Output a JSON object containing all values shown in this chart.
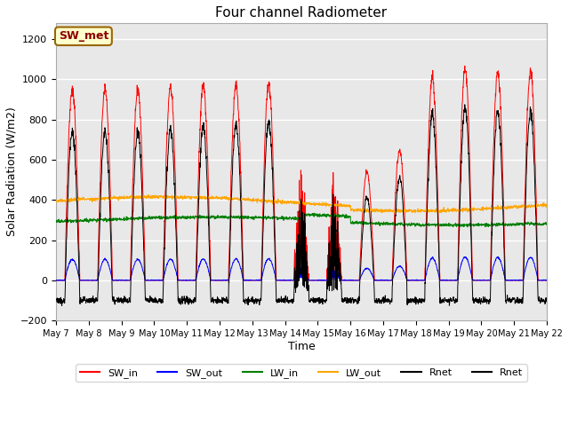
{
  "title": "Four channel Radiometer",
  "xlabel": "Time",
  "ylabel": "Solar Radiation (W/m2)",
  "ylim": [
    -200,
    1280
  ],
  "yticks": [
    -200,
    0,
    200,
    400,
    600,
    800,
    1000,
    1200
  ],
  "xlim": [
    0,
    15
  ],
  "annotation_text": "SW_met",
  "annotation_bg": "#ffffcc",
  "annotation_border": "#996600",
  "fig_bg": "#ffffff",
  "plot_bg": "#e8e8e8",
  "grid_color": "#ffffff",
  "legend_entries": [
    "SW_in",
    "SW_out",
    "LW_in",
    "LW_out",
    "Rnet",
    "Rnet"
  ],
  "legend_colors": [
    "red",
    "blue",
    "green",
    "orange",
    "black",
    "black"
  ],
  "start_day": 7,
  "end_day": 22,
  "n_days": 15
}
